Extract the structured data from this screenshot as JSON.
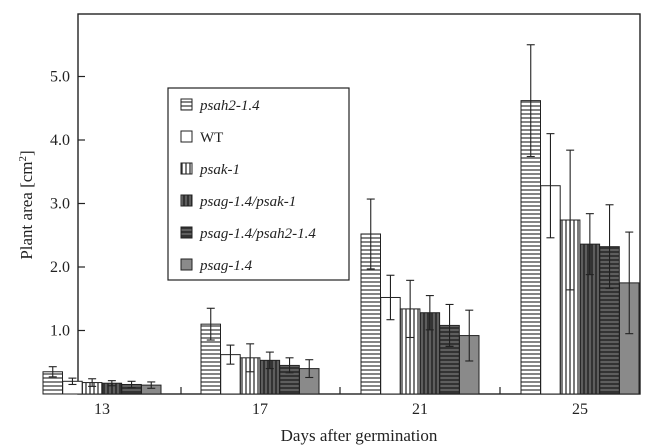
{
  "chart_data": {
    "type": "bar",
    "title": "",
    "xlabel": "Days after germination",
    "ylabel": "Plant area [cm²]",
    "ylabel_main": "Plant area [cm",
    "ylabel_sup": "2",
    "ylabel_end": "]",
    "ylim": [
      0,
      5.8
    ],
    "yticks": [
      1.0,
      2.0,
      3.0,
      4.0,
      5.0
    ],
    "ytick_labels": [
      "1.0",
      "2.0",
      "3.0",
      "4.0",
      "5.0"
    ],
    "categories": [
      "13",
      "17",
      "21",
      "25"
    ],
    "grid": false,
    "legend_position": "top-left",
    "series": [
      {
        "name": "psah2-1.4",
        "italic": true,
        "fill": "#ffffff",
        "pattern": "horizontal",
        "values": [
          0.35,
          1.1,
          2.52,
          4.62
        ],
        "errors": [
          0.08,
          0.25,
          0.55,
          0.88
        ]
      },
      {
        "name": "WT",
        "italic": false,
        "fill": "#ffffff",
        "pattern": "none",
        "values": [
          0.2,
          0.62,
          1.52,
          3.28
        ],
        "errors": [
          0.05,
          0.15,
          0.35,
          0.82
        ]
      },
      {
        "name": "psak-1",
        "italic": true,
        "fill": "#ffffff",
        "pattern": "vertical",
        "values": [
          0.18,
          0.57,
          1.34,
          2.74
        ],
        "errors": [
          0.06,
          0.22,
          0.45,
          1.1
        ]
      },
      {
        "name": "psag-1.4/psak-1",
        "italic": true,
        "fill": "#3a3a3a",
        "pattern": "vertical-dark",
        "values": [
          0.17,
          0.53,
          1.28,
          2.36
        ],
        "errors": [
          0.04,
          0.13,
          0.27,
          0.48
        ]
      },
      {
        "name": "psag-1.4/psah2-1.4",
        "italic": true,
        "fill": "#3a3a3a",
        "pattern": "horizontal-dark",
        "values": [
          0.15,
          0.45,
          1.08,
          2.32
        ],
        "errors": [
          0.05,
          0.12,
          0.33,
          0.66
        ]
      },
      {
        "name": "psag-1.4",
        "italic": true,
        "fill": "#8a8a8a",
        "pattern": "none",
        "values": [
          0.14,
          0.4,
          0.92,
          1.75
        ],
        "errors": [
          0.05,
          0.14,
          0.4,
          0.8
        ]
      }
    ]
  }
}
